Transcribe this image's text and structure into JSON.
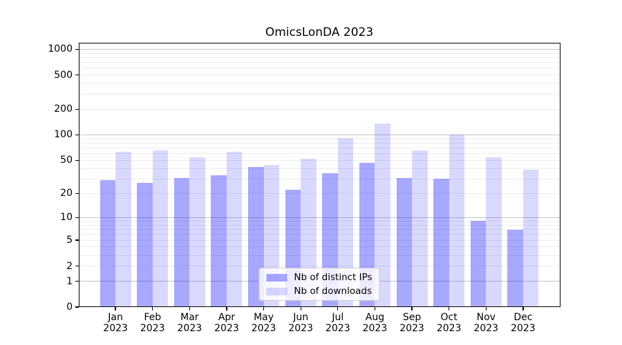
{
  "chart_data": {
    "type": "bar",
    "title": "OmicsLonDA 2023",
    "scale": "log1p",
    "grid": true,
    "legend_position": "lower center",
    "categories": [
      {
        "month": "Jan",
        "year": "2023"
      },
      {
        "month": "Feb",
        "year": "2023"
      },
      {
        "month": "Mar",
        "year": "2023"
      },
      {
        "month": "Apr",
        "year": "2023"
      },
      {
        "month": "May",
        "year": "2023"
      },
      {
        "month": "Jun",
        "year": "2023"
      },
      {
        "month": "Jul",
        "year": "2023"
      },
      {
        "month": "Aug",
        "year": "2023"
      },
      {
        "month": "Sep",
        "year": "2023"
      },
      {
        "month": "Oct",
        "year": "2023"
      },
      {
        "month": "Nov",
        "year": "2023"
      },
      {
        "month": "Dec",
        "year": "2023"
      }
    ],
    "series": [
      {
        "name": "Nb of distinct IPs",
        "color": "rgba(0,0,255,0.34)",
        "values": [
          29,
          27,
          31,
          33,
          42,
          22,
          35,
          47,
          31,
          30,
          9,
          7
        ]
      },
      {
        "name": "Nb of downloads",
        "color": "rgba(0,0,255,0.15)",
        "values": [
          63,
          65,
          54,
          63,
          44,
          52,
          92,
          137,
          66,
          100,
          54,
          39
        ]
      }
    ],
    "yticks": [
      0,
      1,
      2,
      5,
      10,
      20,
      50,
      100,
      200,
      500,
      1000
    ],
    "ylim": [
      0,
      1200
    ],
    "gridline_major_values": [
      1,
      10,
      100,
      1000
    ],
    "gridline_minor_values": [
      2,
      3,
      4,
      5,
      6,
      7,
      8,
      9,
      20,
      30,
      40,
      50,
      60,
      70,
      80,
      90,
      200,
      300,
      400,
      500,
      600,
      700,
      800,
      900
    ],
    "colors": {
      "grid_major": "#c3c3c3",
      "grid_minor": "#ececec",
      "axis": "#000000",
      "text": "#000000"
    }
  }
}
